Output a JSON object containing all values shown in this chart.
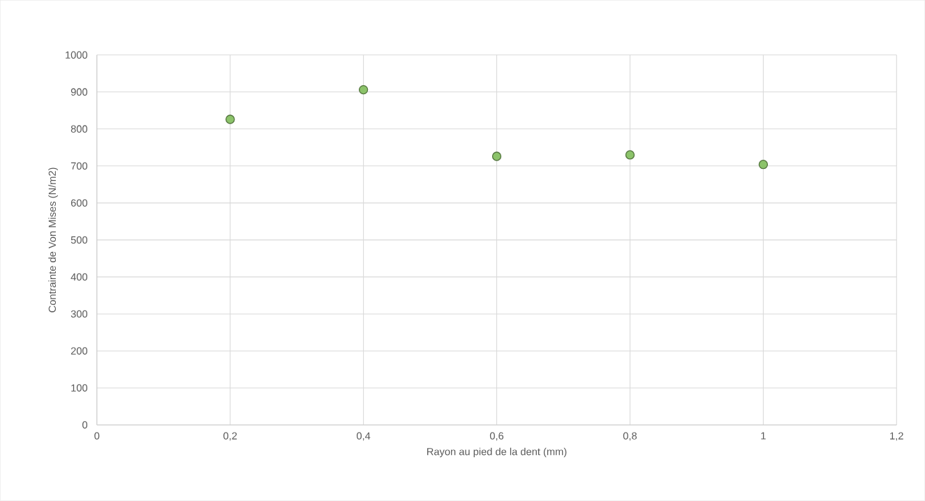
{
  "chart_data": {
    "type": "scatter",
    "xlabel": "Rayon au pied de la dent (mm)",
    "ylabel": "Contrainte de Von Mises (N/m2)",
    "x": [
      0.2,
      0.4,
      0.6,
      0.8,
      1.0
    ],
    "series": [
      {
        "color": "#8cc36a",
        "values": [
          826,
          906,
          726,
          730,
          704
        ]
      }
    ],
    "xlim": [
      0,
      1.2
    ],
    "ylim": [
      0,
      1000
    ],
    "xticks": [
      0,
      {
        "value": 0.2,
        "label": "0,2"
      },
      {
        "value": 0.4,
        "label": "0,4"
      },
      {
        "value": 0.6,
        "label": "0,6"
      },
      {
        "value": 0.8,
        "label": "0,8"
      },
      1,
      {
        "value": 1.2,
        "label": "1,2"
      }
    ],
    "yticks": [
      0,
      100,
      200,
      300,
      400,
      500,
      600,
      700,
      800,
      900,
      1000
    ],
    "grid": true
  }
}
